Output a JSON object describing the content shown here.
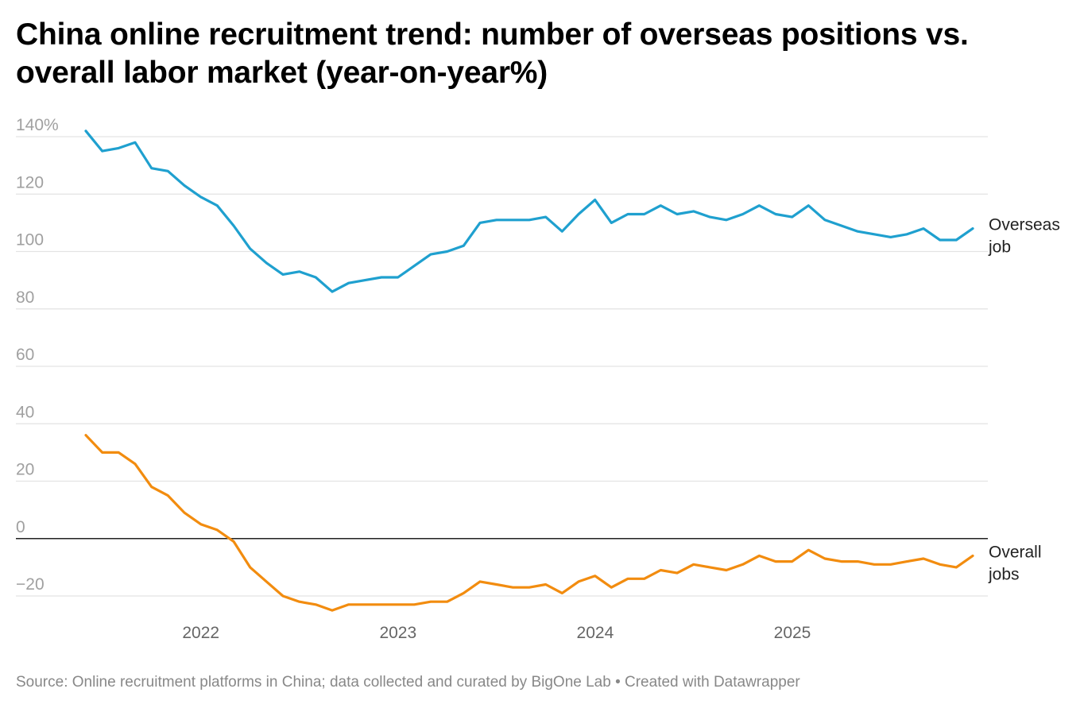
{
  "title": "China online recruitment trend: number of overseas positions vs. overall labor market (year-on-year%)",
  "source": "Source: Online recruitment platforms in China; data collected and curated by BigOne Lab • Created with Datawrapper",
  "colors": {
    "overseas": "#1fa0cf",
    "overall": "#f28c0f",
    "grid": "#e3e3e3",
    "zero": "#222222"
  },
  "chart_data": {
    "type": "line",
    "title": "China online recruitment trend: number of overseas positions vs. overall labor market (year-on-year%)",
    "xlabel": "",
    "ylabel": "",
    "ylim": [
      -30,
      145
    ],
    "y_ticks": [
      {
        "value": 140,
        "label": "140%"
      },
      {
        "value": 120,
        "label": "120"
      },
      {
        "value": 100,
        "label": "100"
      },
      {
        "value": 80,
        "label": "80"
      },
      {
        "value": 60,
        "label": "60"
      },
      {
        "value": 40,
        "label": "40"
      },
      {
        "value": 20,
        "label": "20"
      },
      {
        "value": 0,
        "label": "0"
      },
      {
        "value": -20,
        "label": "−20"
      }
    ],
    "x_ticks": [
      {
        "value": 2022.0,
        "label": "2022"
      },
      {
        "value": 2023.0,
        "label": "2023"
      },
      {
        "value": 2024.0,
        "label": "2024"
      },
      {
        "value": 2025.0,
        "label": "2025"
      }
    ],
    "x_start": 2021.4167,
    "x_step": 0.0833,
    "grid": true,
    "series": [
      {
        "name": "Overseas job",
        "label_lines": [
          "Overseas",
          "job"
        ],
        "values": [
          142,
          135,
          136,
          138,
          129,
          128,
          123,
          119,
          116,
          109,
          101,
          96,
          92,
          93,
          91,
          86,
          89,
          90,
          91,
          91,
          95,
          99,
          100,
          102,
          110,
          111,
          111,
          111,
          112,
          107,
          113,
          118,
          110,
          113,
          113,
          116,
          113,
          114,
          112,
          111,
          113,
          116,
          113,
          112,
          116,
          111,
          109,
          107,
          106,
          105,
          106,
          108,
          104,
          104,
          108
        ]
      },
      {
        "name": "Overall jobs",
        "label_lines": [
          "Overall",
          "jobs"
        ],
        "values": [
          36,
          30,
          30,
          26,
          18,
          15,
          9,
          5,
          3,
          -1,
          -10,
          -15,
          -20,
          -22,
          -23,
          -25,
          -23,
          -23,
          -23,
          -23,
          -23,
          -22,
          -22,
          -19,
          -15,
          -16,
          -17,
          -17,
          -16,
          -19,
          -15,
          -13,
          -17,
          -14,
          -14,
          -11,
          -12,
          -9,
          -10,
          -11,
          -9,
          -6,
          -8,
          -8,
          -4,
          -7,
          -8,
          -8,
          -9,
          -9,
          -8,
          -7,
          -9,
          -10,
          -6
        ]
      }
    ]
  }
}
